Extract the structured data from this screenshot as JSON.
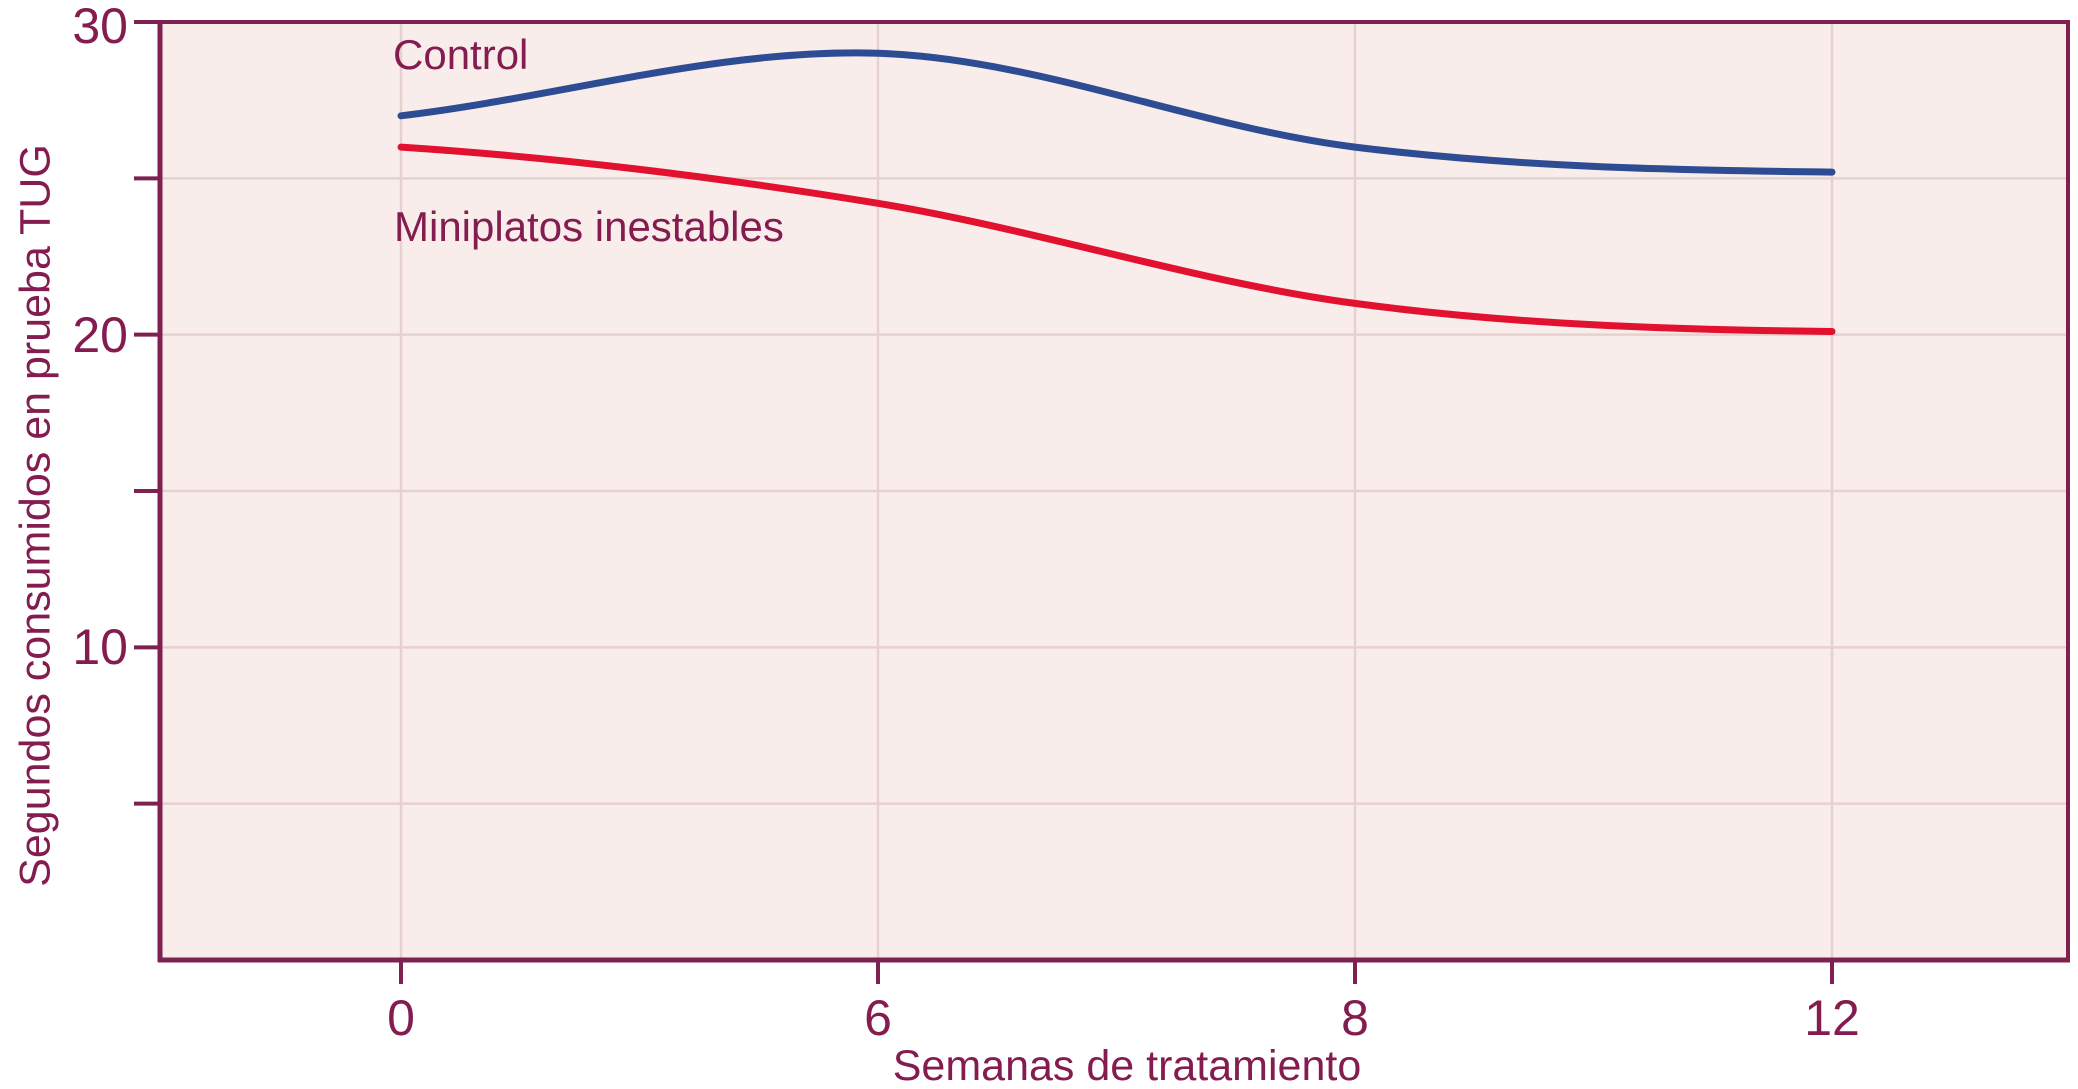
{
  "chart_data": {
    "type": "line",
    "title": "",
    "xlabel": "Semanas de tratamiento",
    "ylabel": "Segundos consumidos en prueba TUG",
    "x_axis": {
      "categories": [
        0,
        6,
        8,
        12
      ],
      "tick_labels": [
        "0",
        "6",
        "8",
        "12"
      ],
      "spacing": "ordinal-evenly-spaced-ticks"
    },
    "y_axis": {
      "range": [
        0,
        30
      ],
      "labeled_ticks": [
        30,
        20,
        10
      ],
      "labeled_tick_strings": [
        "30",
        "20",
        "10"
      ],
      "minor_ticks": [
        25,
        15,
        5
      ],
      "gridline_values": [
        25,
        20,
        15,
        10,
        5
      ],
      "grid": "on"
    },
    "series": [
      {
        "name": "Control",
        "annotation_label": "Control",
        "color": "#2e4c93",
        "x": [
          0,
          6,
          8,
          12
        ],
        "values": [
          27,
          29,
          26,
          25.2
        ],
        "shape_note": "rises to crest ~29.1 just before week 6, S-curve decline, flattens to ~25.2 by week 12"
      },
      {
        "name": "Miniplatos inestables",
        "annotation_label": "Miniplatos inestables",
        "color": "#e2112f",
        "x": [
          0,
          6,
          8,
          12
        ],
        "values": [
          26,
          24.2,
          21,
          20.1
        ],
        "shape_note": "gentle decline from 26, steepest between weeks 6 and 8, flattens to ~20.1 by week 12"
      }
    ],
    "legend": "none (series labeled by in-plot annotations)"
  },
  "style": {
    "axis_text_color": "#841c50",
    "axis_line_color": "#7e2150",
    "plot_background_color": "#f8edea",
    "gridline_color": "#e7d1cf",
    "outer_background_color": "#ffffff"
  }
}
